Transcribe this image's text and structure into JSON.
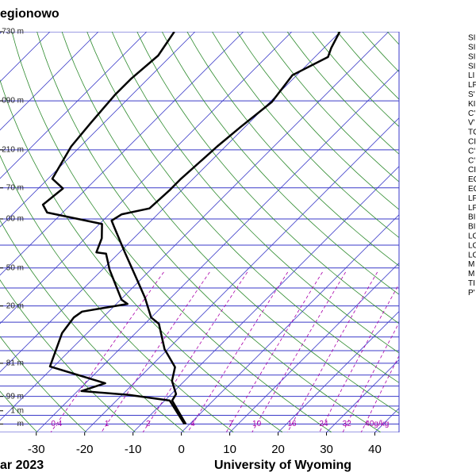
{
  "chart_data": {
    "type": "skewt",
    "title": "egionowo",
    "date_label": "ar 2023",
    "credit": "University of Wyoming",
    "skew_angle": 45,
    "log_y": true,
    "xlim": [
      -37.5,
      45
    ],
    "ylim": [
      1050,
      100
    ],
    "xticks": [
      -30,
      -20,
      -10,
      0,
      10,
      20,
      30,
      40
    ],
    "yticks": [
      {
        "value": 100,
        "label": "730 m"
      },
      {
        "value": 150,
        "label": "090 m"
      },
      {
        "value": 200,
        "label": "210 m"
      },
      {
        "value": 250,
        "label": "70 m"
      },
      {
        "value": 300,
        "label": "00 m"
      },
      {
        "value": 400,
        "label": "50 m"
      },
      {
        "value": 500,
        "label": "20 m"
      },
      {
        "value": 700,
        "label": "81 m"
      },
      {
        "value": 850,
        "label": "99 m"
      },
      {
        "value": 925,
        "label": "1 m"
      },
      {
        "value": 1000,
        "label": "m"
      }
    ],
    "isobars": [
      100,
      150,
      200,
      250,
      300,
      350,
      400,
      450,
      500,
      550,
      600,
      650,
      700,
      750,
      800,
      850,
      900,
      950,
      1000,
      1050
    ],
    "isotherms": [
      -120,
      -110,
      -100,
      -90,
      -80,
      -70,
      -60,
      -50,
      -40,
      -30,
      -20,
      -10,
      0,
      10,
      20,
      30,
      40
    ],
    "dry_adiabats": [
      240,
      250,
      260,
      270,
      280,
      290,
      300,
      310,
      320,
      330,
      340,
      350,
      360,
      370,
      380,
      390,
      400,
      410,
      420,
      430,
      440,
      450,
      460,
      470,
      480
    ],
    "mixing_ratios": [
      0.4,
      1,
      2,
      4,
      7,
      10,
      16,
      24,
      32,
      {
        "value": 40,
        "label": "40g/kg"
      }
    ],
    "isobar_color": "#3a3ac8",
    "isotherm_color": "#3a3ac8",
    "adiabat_color": "#2e8b2e",
    "mixing_color": "#aa00aa",
    "series": [
      {
        "color": "#000000",
        "x": [
          -0.8,
          -8.5,
          -9.0,
          -12.6,
          -14.8,
          -20.7,
          -27.1,
          -30.0,
          -35.4,
          -41.4,
          -48.5,
          -56.6,
          -58.2,
          -57.4,
          -52.9,
          -52.5,
          -52.5,
          -51.7,
          -50.9,
          -49.6,
          -50.9,
          -47.3,
          -48.5,
          -50.1
        ],
        "y": [
          1000,
          871,
          839,
          776,
          716,
          644,
          555,
          535,
          476,
          423,
          368,
          313,
          303,
          292,
          282,
          254,
          237,
          196,
          175,
          151,
          129,
          116,
          110,
          100
        ]
      },
      {
        "color": "#000000",
        "x": [
          -1.1,
          -9.0,
          -18.6,
          -29.2,
          -25.9,
          -40.8,
          -45.2,
          -46.0,
          -45.5,
          -37.7,
          -39.8,
          -48.5,
          -52.5,
          -54.8,
          -56.6,
          -59.5,
          -73.2,
          -75.7,
          -74.9,
          -79.1,
          -81.9,
          -82.7,
          -83.5,
          -83.5,
          -82.7,
          -84.3
        ],
        "y": [
          1000,
          871,
          843,
          824,
          787,
          713,
          586,
          535,
          517,
          494,
          482,
          404,
          368,
          365,
          336,
          309,
          289,
          276,
          251,
          237,
          196,
          171,
          145,
          132,
          115,
          100
        ]
      }
    ],
    "indices": [
      "SI",
      "SI",
      "SI",
      "SI",
      "LI",
      "LF",
      "S'",
      "KI",
      "C'",
      "V'",
      "TC",
      "CI",
      "C'",
      "C'",
      "CI",
      "EC",
      "EC",
      "LF",
      "LF",
      "BI",
      "BI",
      "LC",
      "LC",
      "LC",
      "M",
      "M",
      "TI",
      "P'"
    ]
  }
}
